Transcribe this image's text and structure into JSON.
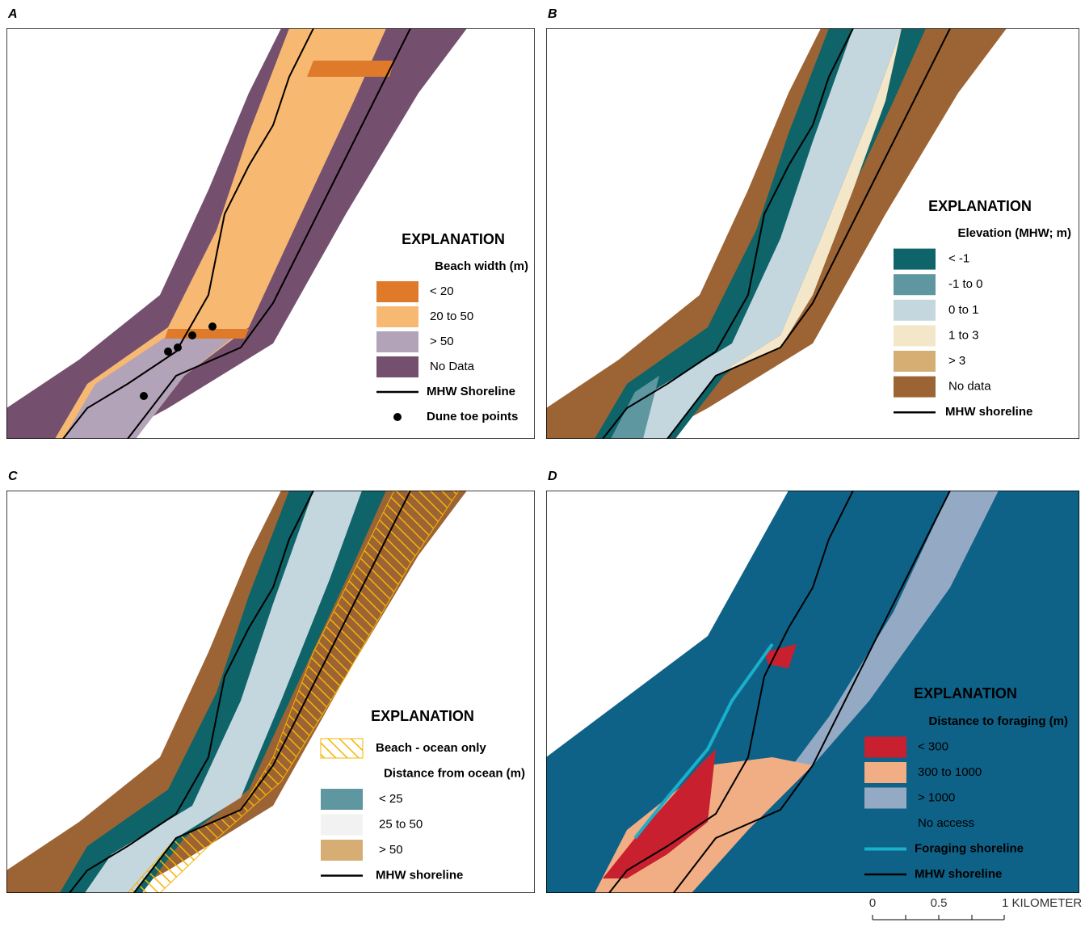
{
  "panels": [
    {
      "label": "A",
      "legend": {
        "title": "EXPLANATION",
        "entries": [
          {
            "label": "Beach width (m)"
          },
          {
            "label": "< 20",
            "color": "#de7a2a"
          },
          {
            "label": "20 to 50",
            "color": "#f7b872"
          },
          {
            "label": "> 50",
            "color": "#b3a3b8"
          },
          {
            "label": "No Data",
            "color": "#75506e"
          },
          {
            "label": "MHW Shoreline",
            "color": "#000000",
            "style": "line"
          },
          {
            "label": "Dune toe points",
            "color": "#000000",
            "style": "dot"
          }
        ]
      }
    },
    {
      "label": "B",
      "legend": {
        "title": "EXPLANATION",
        "entries": [
          {
            "label": "Elevation (MHW; m)"
          },
          {
            "label": "< -1",
            "color": "#0e6468"
          },
          {
            "label": "-1 to 0",
            "color": "#5e97a0"
          },
          {
            "label": "0 to 1",
            "color": "#c4d6de"
          },
          {
            "label": "1 to 3",
            "color": "#f4e6c9"
          },
          {
            "label": "> 3",
            "color": "#d6ae74"
          },
          {
            "label": "No data",
            "color": "#9c6434"
          },
          {
            "label": "MHW shoreline",
            "color": "#000000",
            "style": "line"
          }
        ]
      }
    },
    {
      "label": "C",
      "legend": {
        "title": "EXPLANATION",
        "entries": [
          {
            "label": "Beach - ocean only",
            "color": "#f5b400",
            "style": "hatch"
          },
          {
            "label": "Distance from ocean (m)"
          },
          {
            "label": "< 25",
            "color": "#5e97a0"
          },
          {
            "label": "25 to 50",
            "color": "#f2f2f2"
          },
          {
            "label": "> 50",
            "color": "#d6ae74"
          },
          {
            "label": "MHW shoreline",
            "color": "#000000",
            "style": "line"
          }
        ]
      }
    },
    {
      "label": "D",
      "legend": {
        "title": "EXPLANATION",
        "entries": [
          {
            "label": "Distance to foraging (m)"
          },
          {
            "label": "< 300",
            "color": "#c8202f"
          },
          {
            "label": "300 to 1000",
            "color": "#f1ae85"
          },
          {
            "label": "> 1000",
            "color": "#94aac4"
          },
          {
            "label": "No access",
            "color": "#0e6288"
          },
          {
            "label": "Foraging shoreline",
            "color": "#1ab0cc",
            "style": "line"
          },
          {
            "label": "MHW shoreline",
            "color": "#000000",
            "style": "line"
          }
        ]
      }
    }
  ],
  "scale_bar": {
    "ticks": [
      "0",
      "0.5"
    ],
    "end_label": "1 KILOMETER"
  }
}
